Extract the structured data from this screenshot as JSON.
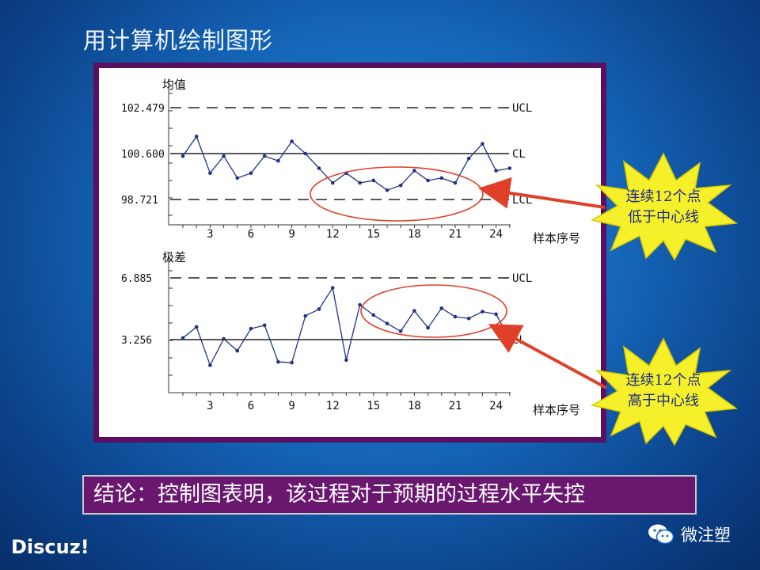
{
  "slide": {
    "title": "用计算机绘制图形",
    "conclusion": "结论：控制图表明，该过程对于预期的过程水平失控",
    "watermark": "Discuz!",
    "wechat_label": "微注塑"
  },
  "callouts": [
    {
      "line1": "连续12个点",
      "line2": "低于中心线"
    },
    {
      "line1": "连续12个点",
      "line2": "高于中心线"
    }
  ],
  "colors": {
    "series": "#22318a",
    "highlight": "#e0402a",
    "burst": "#f6f02a",
    "panel_border": "#5a0f62"
  },
  "chart_data": [
    {
      "type": "line",
      "ylabel": "均值",
      "xlabel": "样本序号",
      "x_ticks": [
        "3",
        "6",
        "9",
        "12",
        "15",
        "18",
        "21",
        "24"
      ],
      "control_lines": {
        "UCL": 102.479,
        "CL": 100.6,
        "LCL": 98.721
      },
      "ucl_label": "102.479",
      "cl_label": "100.600",
      "lcl_label": "98.721",
      "line_names": [
        "UCL",
        "CL",
        "LCL"
      ],
      "x": [
        1,
        2,
        3,
        4,
        5,
        6,
        7,
        8,
        9,
        10,
        11,
        12,
        13,
        14,
        15,
        16,
        17,
        18,
        19,
        20,
        21,
        22,
        23,
        24,
        25
      ],
      "values": [
        100.5,
        101.3,
        99.8,
        100.5,
        99.6,
        99.8,
        100.5,
        100.3,
        101.1,
        100.6,
        100.0,
        99.4,
        99.8,
        99.4,
        99.5,
        99.1,
        99.3,
        99.9,
        99.5,
        99.6,
        99.4,
        100.4,
        101.0,
        99.9,
        100.0
      ]
    },
    {
      "type": "line",
      "ylabel": "极差",
      "xlabel": "样本序号",
      "x_ticks": [
        "3",
        "6",
        "9",
        "12",
        "15",
        "18",
        "21",
        "24"
      ],
      "control_lines": {
        "UCL": 6.885,
        "CL": 3.256
      },
      "ucl_label": "6.885",
      "cl_label": "3.256",
      "line_names": [
        "UCL",
        "CL"
      ],
      "x": [
        1,
        2,
        3,
        4,
        5,
        6,
        7,
        8,
        9,
        10,
        11,
        12,
        13,
        14,
        15,
        16,
        17,
        18,
        19,
        20,
        21,
        22,
        23,
        24,
        25
      ],
      "values": [
        3.35,
        4.0,
        1.75,
        3.3,
        2.6,
        3.9,
        4.1,
        1.95,
        1.9,
        4.65,
        5.05,
        6.3,
        2.05,
        5.3,
        4.7,
        4.2,
        3.75,
        4.95,
        3.95,
        5.1,
        4.6,
        4.5,
        4.9,
        4.75,
        3.3
      ]
    }
  ]
}
